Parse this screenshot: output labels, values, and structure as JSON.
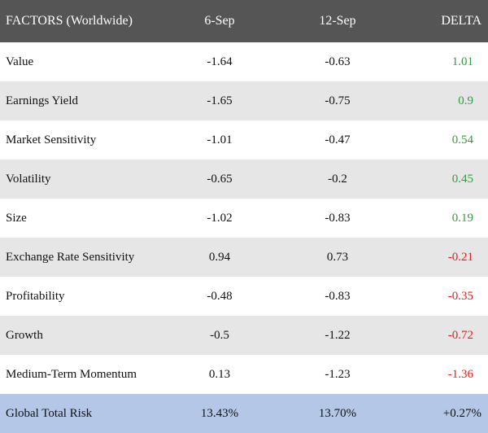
{
  "header": {
    "factor": "FACTORS (Worldwide)",
    "date1": "6-Sep",
    "date2": "12-Sep",
    "delta": "DELTA"
  },
  "rows": [
    {
      "factor": "Value",
      "sep6": "-1.64",
      "sep12": "-0.63",
      "delta": "1.01"
    },
    {
      "factor": "Earnings Yield",
      "sep6": "-1.65",
      "sep12": "-0.75",
      "delta": "0.9"
    },
    {
      "factor": "Market Sensitivity",
      "sep6": "-1.01",
      "sep12": "-0.47",
      "delta": "0.54"
    },
    {
      "factor": "Volatility",
      "sep6": "-0.65",
      "sep12": "-0.2",
      "delta": "0.45"
    },
    {
      "factor": "Size",
      "sep6": "-1.02",
      "sep12": "-0.83",
      "delta": "0.19"
    },
    {
      "factor": "Exchange Rate Sensitivity",
      "sep6": "0.94",
      "sep12": "0.73",
      "delta": "-0.21"
    },
    {
      "factor": "Profitability",
      "sep6": "-0.48",
      "sep12": "-0.83",
      "delta": "-0.35"
    },
    {
      "factor": "Growth",
      "sep6": "-0.5",
      "sep12": "-1.22",
      "delta": "-0.72"
    },
    {
      "factor": "Medium-Term Momentum",
      "sep6": "0.13",
      "sep12": "-1.23",
      "delta": "-1.36"
    }
  ],
  "total": {
    "factor": "Global Total Risk",
    "sep6": "13.43%",
    "sep12": "13.70%",
    "delta": "+0.27%"
  },
  "colors": {
    "header_bg": "#555555",
    "positive": "#2e9e3a",
    "negative": "#e0201c",
    "total_bg": "#b4c7e7",
    "stripe": "#e6e6e6"
  }
}
